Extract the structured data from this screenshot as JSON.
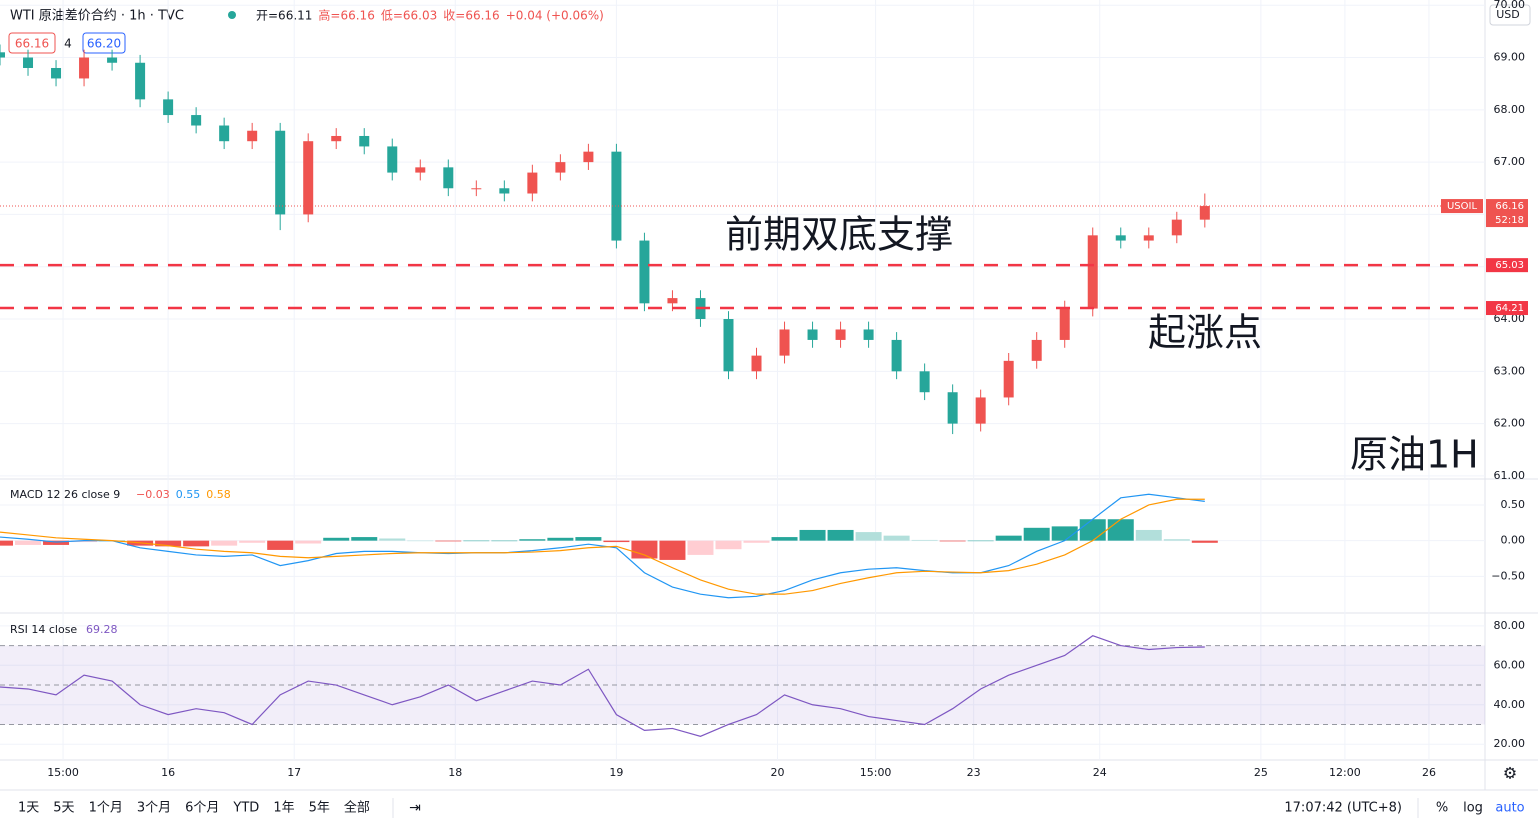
{
  "header": {
    "symbol": "WTI 原油差价合约 · 1h · TVC",
    "ohlc": [
      "开=66.11",
      "高=66.16",
      "低=66.03",
      "收=66.16",
      "+0.04 (+0.06%)"
    ],
    "bid": "66.16",
    "spread": "4",
    "ask": "66.20",
    "currency": "USD"
  },
  "toolbar": {
    "ranges": [
      "1天",
      "5天",
      "1个月",
      "3个月",
      "6个月",
      "YTD",
      "1年",
      "5年",
      "全部"
    ],
    "clock": "17:07:42 (UTC+8)",
    "options": [
      "%",
      "log",
      "auto"
    ]
  },
  "chart_data": [
    {
      "type": "candlestick",
      "up_color": "#ef5350",
      "down_color": "#26a69a",
      "x": [
        0,
        4,
        8,
        12,
        16,
        20,
        24,
        28,
        32,
        36,
        40,
        44,
        48,
        52,
        56,
        60,
        64,
        68,
        72,
        76,
        80,
        84,
        88,
        92,
        96,
        100,
        104,
        108,
        112,
        116,
        120,
        124,
        128,
        132,
        136,
        140,
        144,
        148,
        152,
        156,
        160,
        164,
        168,
        172
      ],
      "open": [
        69.1,
        69.0,
        68.8,
        68.6,
        69.0,
        68.9,
        68.2,
        67.9,
        67.7,
        67.4,
        67.6,
        66.0,
        67.4,
        67.5,
        67.3,
        66.8,
        66.9,
        66.5,
        66.5,
        66.4,
        66.8,
        67.0,
        67.2,
        65.5,
        64.3,
        64.4,
        64.0,
        63.0,
        63.3,
        63.8,
        63.6,
        63.8,
        63.6,
        63.0,
        62.6,
        62.0,
        62.5,
        63.2,
        63.6,
        64.2,
        65.6,
        65.5,
        65.6,
        65.9
      ],
      "high": [
        69.25,
        69.15,
        68.95,
        69.15,
        69.15,
        69.05,
        68.35,
        68.05,
        67.85,
        67.75,
        67.75,
        67.55,
        67.65,
        67.65,
        67.45,
        67.05,
        67.05,
        66.65,
        66.65,
        66.95,
        67.15,
        67.35,
        67.35,
        65.65,
        64.55,
        64.55,
        64.15,
        63.45,
        63.95,
        63.95,
        63.95,
        63.95,
        63.75,
        63.15,
        62.75,
        62.65,
        63.35,
        63.75,
        64.35,
        65.75,
        65.75,
        65.75,
        66.05,
        66.4
      ],
      "low": [
        68.85,
        68.65,
        68.45,
        68.45,
        68.75,
        68.05,
        67.75,
        67.55,
        67.25,
        67.25,
        65.7,
        65.85,
        67.25,
        67.15,
        66.65,
        66.65,
        66.35,
        66.35,
        66.25,
        66.25,
        66.65,
        66.85,
        65.35,
        64.15,
        64.15,
        63.85,
        62.85,
        62.85,
        63.15,
        63.45,
        63.45,
        63.45,
        62.85,
        62.45,
        61.8,
        61.85,
        62.35,
        63.05,
        63.45,
        64.05,
        65.35,
        65.35,
        65.45,
        65.75
      ],
      "close": [
        69.0,
        68.8,
        68.6,
        69.0,
        68.9,
        68.2,
        67.9,
        67.7,
        67.4,
        67.6,
        66.0,
        67.4,
        67.5,
        67.3,
        66.8,
        66.9,
        66.5,
        66.5,
        66.4,
        66.8,
        67.0,
        67.2,
        65.5,
        64.3,
        64.4,
        64.0,
        63.0,
        63.3,
        63.8,
        63.6,
        63.8,
        63.6,
        63.0,
        62.6,
        62.0,
        62.5,
        63.2,
        63.6,
        64.2,
        65.6,
        65.5,
        65.6,
        65.9,
        66.16
      ],
      "xlim": [
        0,
        212
      ],
      "xticks": [
        {
          "value": 9,
          "label": "15:00"
        },
        {
          "value": 24,
          "label": "16"
        },
        {
          "value": 42,
          "label": "17"
        },
        {
          "value": 65,
          "label": "18"
        },
        {
          "value": 88,
          "label": "19"
        },
        {
          "value": 111,
          "label": "20"
        },
        {
          "value": 125,
          "label": "15:00"
        },
        {
          "value": 139,
          "label": "23"
        },
        {
          "value": 157,
          "label": "24"
        },
        {
          "value": 180,
          "label": "25"
        },
        {
          "value": 192,
          "label": "12:00"
        },
        {
          "value": 204,
          "label": "26"
        }
      ],
      "ylim": [
        60.96,
        70.1
      ],
      "yticks": [
        {
          "value": 61,
          "label": "61.00"
        },
        {
          "value": 62,
          "label": "62.00"
        },
        {
          "value": 63,
          "label": "63.00"
        },
        {
          "value": 64,
          "label": "64.00"
        },
        {
          "value": 65,
          "label": "65.00"
        },
        {
          "value": 66,
          "label": "66.00"
        },
        {
          "value": 67,
          "label": "67.00"
        },
        {
          "value": 68,
          "label": "68.00"
        },
        {
          "value": 69,
          "label": "69.00"
        },
        {
          "value": 70,
          "label": "70.00"
        }
      ],
      "grid": true,
      "level_color": "#f23645",
      "levels": [
        65.03,
        64.21
      ],
      "last_price": 66.16,
      "symbol_tag": "USOIL",
      "countdown": "52:18",
      "annotations": [
        "前期双底支撑",
        "起涨点",
        "原油1H"
      ]
    },
    {
      "type": "macd",
      "title": "MACD 12 26 close 9",
      "legend": [
        {
          "text": "−0.03",
          "color": "#ef5350"
        },
        {
          "text": "0.55",
          "color": "#2196f3"
        },
        {
          "text": "0.58",
          "color": "#ff9800"
        }
      ],
      "histogram": [
        -0.07,
        -0.06,
        -0.06,
        -0.02,
        0.0,
        -0.07,
        -0.08,
        -0.08,
        -0.07,
        -0.03,
        -0.13,
        -0.04,
        0.04,
        0.05,
        0.03,
        0.0,
        -0.01,
        0.0,
        0.0,
        0.02,
        0.04,
        0.05,
        -0.02,
        -0.25,
        -0.27,
        -0.2,
        -0.12,
        -0.03,
        0.05,
        0.15,
        0.15,
        0.12,
        0.07,
        0.01,
        -0.01,
        0.0,
        0.07,
        0.18,
        0.2,
        0.3,
        0.3,
        0.15,
        0.02,
        -0.03
      ],
      "series": [
        {
          "name": "MACD",
          "color": "#2196f3",
          "values": [
            0.05,
            0.02,
            -0.02,
            0.0,
            0.0,
            -0.1,
            -0.15,
            -0.2,
            -0.22,
            -0.2,
            -0.35,
            -0.28,
            -0.18,
            -0.15,
            -0.15,
            -0.17,
            -0.18,
            -0.17,
            -0.17,
            -0.14,
            -0.1,
            -0.05,
            -0.1,
            -0.45,
            -0.65,
            -0.75,
            -0.8,
            -0.78,
            -0.7,
            -0.55,
            -0.45,
            -0.4,
            -0.38,
            -0.42,
            -0.45,
            -0.45,
            -0.35,
            -0.15,
            0.0,
            0.3,
            0.6,
            0.65,
            0.6,
            0.55
          ]
        },
        {
          "name": "Signal",
          "color": "#ff9800",
          "values": [
            0.12,
            0.08,
            0.04,
            0.02,
            0.0,
            -0.03,
            -0.07,
            -0.12,
            -0.15,
            -0.17,
            -0.22,
            -0.24,
            -0.22,
            -0.2,
            -0.18,
            -0.17,
            -0.17,
            -0.17,
            -0.17,
            -0.16,
            -0.14,
            -0.1,
            -0.08,
            -0.2,
            -0.38,
            -0.55,
            -0.68,
            -0.75,
            -0.75,
            -0.7,
            -0.6,
            -0.52,
            -0.45,
            -0.43,
            -0.44,
            -0.45,
            -0.42,
            -0.33,
            -0.2,
            0.0,
            0.3,
            0.5,
            0.58,
            0.58
          ]
        }
      ],
      "ylim": [
        -1.0,
        0.85
      ],
      "yticks": [
        {
          "value": 0.5,
          "label": "0.50"
        },
        {
          "value": 0,
          "label": "0.00"
        },
        {
          "value": -0.5,
          "label": "−0.50"
        }
      ]
    },
    {
      "type": "rsi",
      "title": "RSI 14 close",
      "legend": [
        {
          "text": "69.28",
          "color": "#7e57c2"
        }
      ],
      "color": "#7e57c2",
      "values": [
        49,
        48,
        45,
        55,
        52,
        40,
        35,
        38,
        36,
        30,
        45,
        52,
        50,
        45,
        40,
        44,
        50,
        42,
        47,
        52,
        50,
        58,
        35,
        27,
        28,
        24,
        30,
        35,
        45,
        40,
        38,
        34,
        32,
        30,
        38,
        48,
        55,
        60,
        65,
        75,
        70,
        68,
        69,
        69.28
      ],
      "band": [
        30,
        70
      ],
      "midline": 50,
      "ylim": [
        12,
        86
      ],
      "yticks": [
        {
          "value": 20,
          "label": "20.00"
        },
        {
          "value": 40,
          "label": "40.00"
        },
        {
          "value": 60,
          "label": "60.00"
        },
        {
          "value": 80,
          "label": "80.00"
        }
      ]
    }
  ]
}
